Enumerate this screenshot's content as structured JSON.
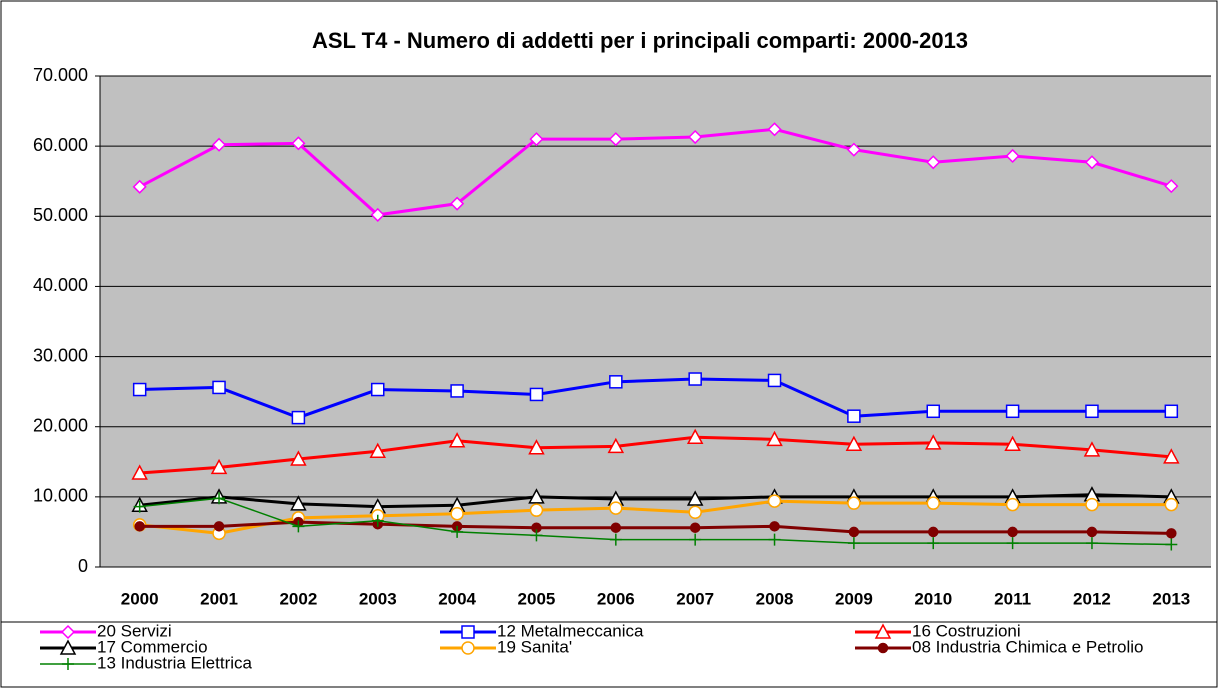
{
  "chart_data": {
    "type": "line",
    "title": "ASL T4 - Numero di addetti per i principali comparti: 2000-2013",
    "categories": [
      "2000",
      "2001",
      "2002",
      "2003",
      "2004",
      "2005",
      "2006",
      "2007",
      "2008",
      "2009",
      "2010",
      "2011",
      "2012",
      "2013"
    ],
    "ylim": [
      0,
      70000
    ],
    "yticks": [
      0,
      {
        "value": 10000,
        "label": "10.000"
      },
      {
        "value": 20000,
        "label": "20.000"
      },
      {
        "value": 30000,
        "label": "30.000"
      },
      {
        "value": 40000,
        "label": "40.000"
      },
      {
        "value": 50000,
        "label": "50.000"
      },
      {
        "value": 60000,
        "label": "60.000"
      },
      {
        "value": 70000,
        "label": "70.000"
      }
    ],
    "grid": true,
    "series": [
      {
        "name": "20 Servizi",
        "color": "#ff00ff",
        "marker": "diamond",
        "values": [
          54200,
          60200,
          60400,
          50200,
          51800,
          61000,
          61000,
          61300,
          62400,
          59500,
          57700,
          58600,
          57700,
          54300
        ]
      },
      {
        "name": "12 Metalmeccanica",
        "color": "#0000ff",
        "marker": "square",
        "values": [
          25300,
          25600,
          21300,
          25300,
          25100,
          24600,
          26400,
          26800,
          26600,
          21500,
          22200,
          22200,
          22200,
          22200
        ]
      },
      {
        "name": "16 Costruzioni",
        "color": "#ff0000",
        "marker": "triangle",
        "values": [
          13400,
          14200,
          15400,
          16500,
          18000,
          17000,
          17200,
          18500,
          18200,
          17500,
          17700,
          17500,
          16700,
          15700
        ]
      },
      {
        "name": "17 Commercio",
        "color": "#000000",
        "marker": "triangle",
        "values": [
          8800,
          10000,
          9000,
          8600,
          8800,
          10000,
          9700,
          9700,
          10000,
          10000,
          10000,
          10000,
          10300,
          10000
        ]
      },
      {
        "name": "19 Sanita'",
        "color": "#ffa500",
        "marker": "circle",
        "values": [
          6000,
          4800,
          7000,
          7300,
          7600,
          8100,
          8400,
          7800,
          9400,
          9100,
          9100,
          8900,
          8900,
          8900
        ]
      },
      {
        "name": "08 Industria Chimica e Petrolio",
        "color": "#800000",
        "marker": "dot",
        "values": [
          5800,
          5800,
          6400,
          6100,
          5800,
          5600,
          5600,
          5600,
          5800,
          5000,
          5000,
          5000,
          5000,
          4800
        ]
      },
      {
        "name": "13 Industria Elettrica",
        "color": "#008000",
        "marker": "plus",
        "values": [
          8600,
          9800,
          5800,
          6600,
          5000,
          4500,
          3900,
          3900,
          3900,
          3400,
          3400,
          3400,
          3400,
          3200
        ]
      }
    ]
  }
}
